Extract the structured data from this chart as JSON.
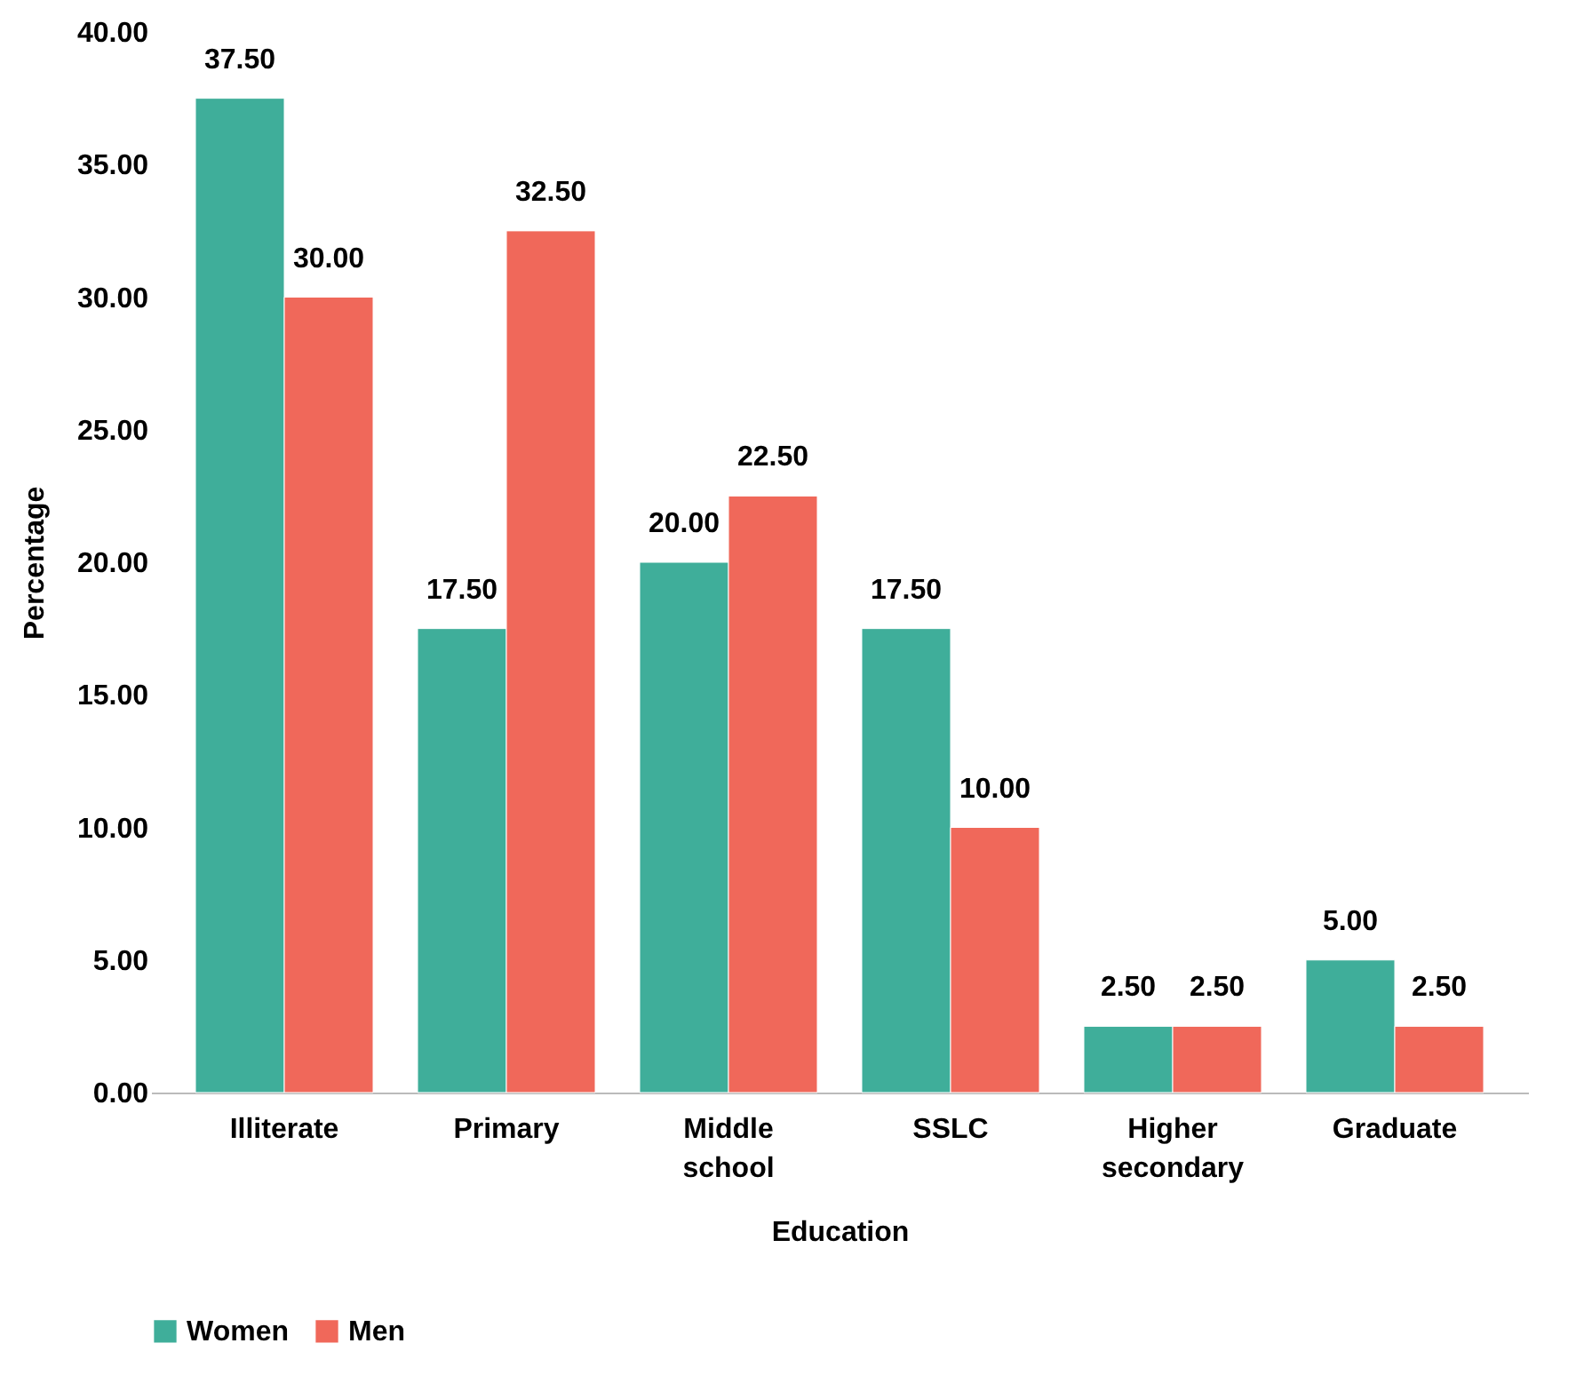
{
  "chart_data": {
    "type": "bar",
    "xlabel": "Education",
    "ylabel": "Percentage",
    "categories": [
      "Illiterate",
      "Primary",
      "Middle school",
      "SSLC",
      "Higher secondary",
      "Graduate"
    ],
    "series": [
      {
        "name": "Women",
        "color": "#3fae9a",
        "values": [
          37.5,
          17.5,
          20.0,
          17.5,
          2.5,
          5.0
        ],
        "value_labels": [
          "37.50",
          "17.50",
          "20.00",
          "17.50",
          "2.50",
          "5.00"
        ]
      },
      {
        "name": "Men",
        "color": "#f0685a",
        "values": [
          30.0,
          32.5,
          22.5,
          10.0,
          2.5,
          2.5
        ],
        "value_labels": [
          "30.00",
          "32.50",
          "22.50",
          "10.00",
          "2.50",
          "2.50"
        ]
      }
    ],
    "ylim": [
      0,
      40
    ],
    "yticks": [
      {
        "value": 0,
        "label": "0.00"
      },
      {
        "value": 5,
        "label": "5.00"
      },
      {
        "value": 10,
        "label": "10.00"
      },
      {
        "value": 15,
        "label": "15.00"
      },
      {
        "value": 20,
        "label": "20.00"
      },
      {
        "value": 25,
        "label": "25.00"
      },
      {
        "value": 30,
        "label": "30.00"
      },
      {
        "value": 35,
        "label": "35.00"
      },
      {
        "value": 40,
        "label": "40.00"
      }
    ],
    "grid": false,
    "legend": "bottom left"
  }
}
